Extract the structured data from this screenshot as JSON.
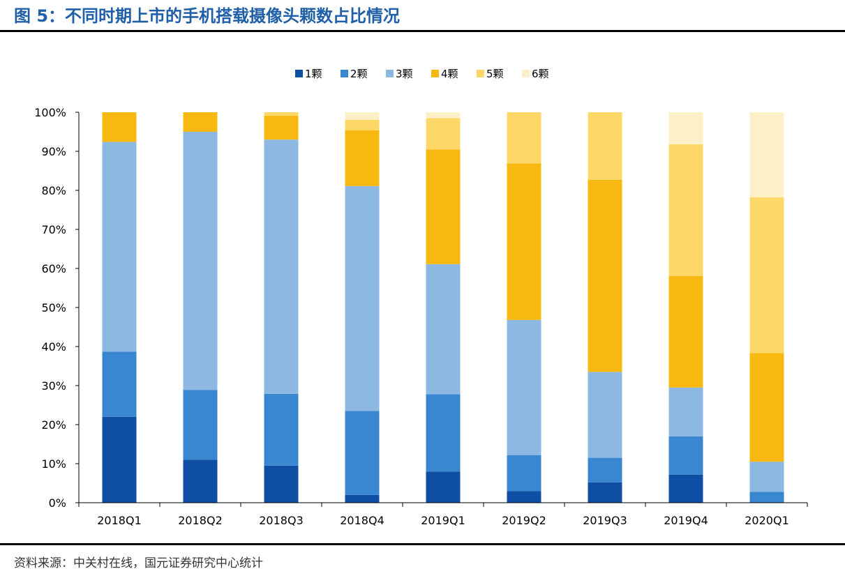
{
  "figure": {
    "title": "图 5：不同时期上市的手机搭载摄像头颗数占比情况",
    "source": "资料来源：中关村在线，国元证券研究中心统计"
  },
  "chart_data": {
    "type": "bar",
    "stacked": true,
    "title": "",
    "xlabel": "",
    "ylabel": "",
    "ylim": [
      0,
      100
    ],
    "y_unit": "%",
    "yticks": [
      "0%",
      "10%",
      "20%",
      "30%",
      "40%",
      "50%",
      "60%",
      "70%",
      "80%",
      "90%",
      "100%"
    ],
    "grid": false,
    "legend_position": "top",
    "categories": [
      "2018Q1",
      "2018Q2",
      "2018Q3",
      "2018Q4",
      "2019Q1",
      "2019Q2",
      "2019Q3",
      "2019Q4",
      "2020Q1"
    ],
    "series": [
      {
        "name": "1颗",
        "color": "#0e4ea3",
        "values": [
          22.0,
          11.0,
          9.5,
          2.0,
          8.0,
          3.0,
          5.2,
          7.2,
          0.0
        ]
      },
      {
        "name": "2颗",
        "color": "#3987d0",
        "values": [
          16.7,
          17.9,
          18.4,
          21.5,
          19.8,
          9.2,
          6.3,
          9.8,
          2.8
        ]
      },
      {
        "name": "3颗",
        "color": "#8db8e2",
        "values": [
          53.7,
          66.1,
          65.1,
          57.6,
          33.3,
          34.6,
          22.0,
          12.5,
          7.7
        ]
      },
      {
        "name": "4颗",
        "color": "#f7b811",
        "values": [
          7.6,
          5.0,
          6.1,
          14.3,
          29.4,
          40.1,
          49.2,
          28.6,
          27.8
        ]
      },
      {
        "name": "5颗",
        "color": "#fdd868",
        "values": [
          0.0,
          0.0,
          0.9,
          2.7,
          8.0,
          13.1,
          17.3,
          33.7,
          39.9
        ]
      },
      {
        "name": "6颗",
        "color": "#fdf0c8",
        "values": [
          0.0,
          0.0,
          0.0,
          1.9,
          1.5,
          0.0,
          0.0,
          8.2,
          21.8
        ]
      }
    ]
  }
}
